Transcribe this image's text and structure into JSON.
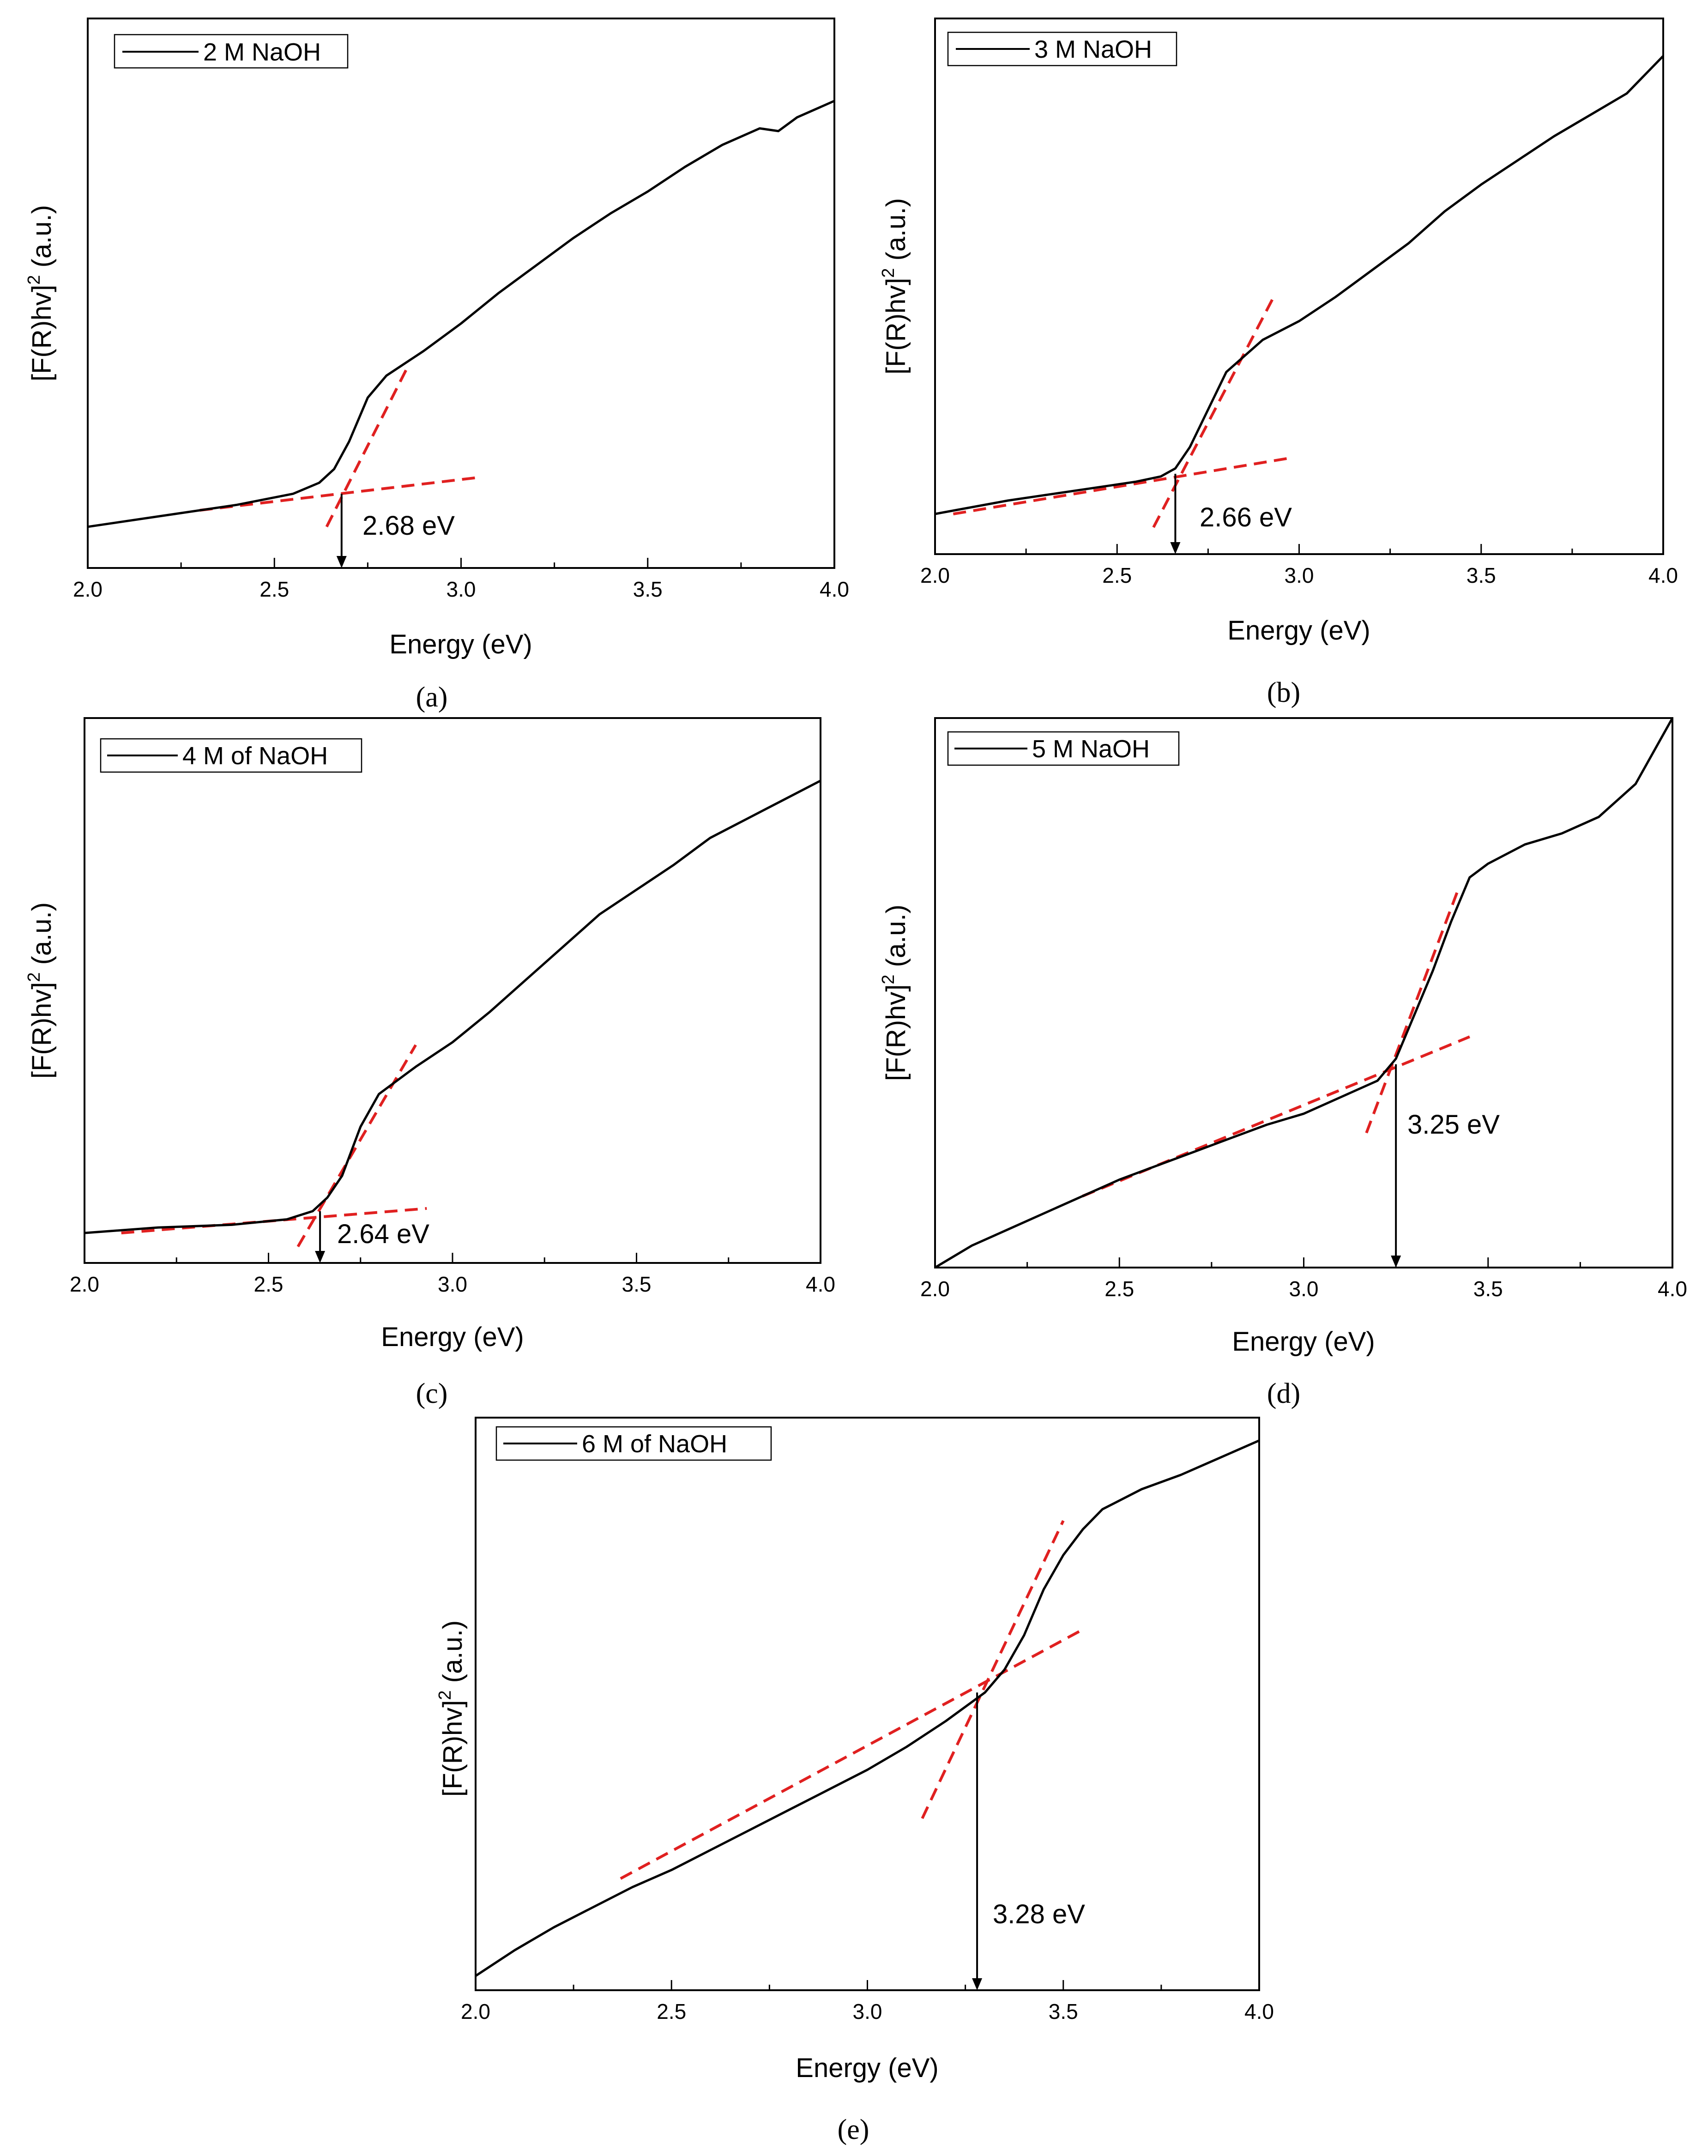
{
  "colors": {
    "curve": "#000000",
    "fit_line": "#e02020",
    "axis": "#000000",
    "background": "#ffffff"
  },
  "chart_data": [
    {
      "type": "line",
      "panel": "(a)",
      "xlabel": "Energy (eV)",
      "ylabel_main": "[F(R)hv]",
      "ylabel_sup": "2",
      "ylabel_tail": " (a.u.)",
      "xlim": [
        2.0,
        4.0
      ],
      "ylim": [
        0,
        100
      ],
      "xticks": [
        "2.0",
        "2.5",
        "3.0",
        "3.5",
        "4.0"
      ],
      "legend": "2 M NaOH",
      "series": [
        {
          "name": "2 M NaOH",
          "x": [
            2.0,
            2.2,
            2.4,
            2.55,
            2.62,
            2.66,
            2.7,
            2.75,
            2.8,
            2.9,
            3.0,
            3.1,
            3.2,
            3.3,
            3.4,
            3.5,
            3.6,
            3.7,
            3.8,
            3.85,
            3.9,
            4.0
          ],
          "y": [
            7.5,
            9.5,
            11.5,
            13.5,
            15.5,
            18,
            23,
            31,
            35,
            39.5,
            44.5,
            50,
            55,
            60,
            64.5,
            68.5,
            73,
            77,
            80,
            79.5,
            82,
            85
          ]
        }
      ],
      "fit_lines": [
        [
          [
            2.3,
            10.5
          ],
          [
            3.05,
            16.5
          ]
        ],
        [
          [
            2.64,
            7.5
          ],
          [
            2.86,
            37
          ]
        ]
      ],
      "band_gap": 2.68,
      "annotation": "2.68 eV",
      "arrow_from_y": 13.5
    },
    {
      "type": "line",
      "panel": "(b)",
      "xlabel": "Energy (eV)",
      "ylabel_main": "[F(R)hv]",
      "ylabel_sup": "2",
      "ylabel_tail": " (a.u.)",
      "xlim": [
        2.0,
        4.0
      ],
      "ylim": [
        0,
        100
      ],
      "xticks": [
        "2.0",
        "2.5",
        "3.0",
        "3.5",
        "4.0"
      ],
      "legend": "3 M NaOH",
      "series": [
        {
          "name": "3 M NaOH",
          "x": [
            2.0,
            2.2,
            2.4,
            2.55,
            2.62,
            2.66,
            2.7,
            2.75,
            2.8,
            2.9,
            3.0,
            3.1,
            3.2,
            3.3,
            3.4,
            3.5,
            3.6,
            3.7,
            3.8,
            3.9,
            4.0
          ],
          "y": [
            7.5,
            10,
            12,
            13.5,
            14.5,
            16,
            20,
            27,
            34,
            40,
            43.5,
            48,
            53,
            58,
            64,
            69,
            73.5,
            78,
            82,
            86,
            93
          ]
        }
      ],
      "fit_lines": [
        [
          [
            2.05,
            7.5
          ],
          [
            2.98,
            18
          ]
        ],
        [
          [
            2.6,
            5
          ],
          [
            2.93,
            48
          ]
        ]
      ],
      "band_gap": 2.66,
      "annotation": "2.66 eV",
      "arrow_from_y": 15
    },
    {
      "type": "line",
      "panel": "(c)",
      "xlabel": "Energy (eV)",
      "ylabel_main": "[F(R)hv]",
      "ylabel_sup": "2",
      "ylabel_tail": " (a.u.)",
      "xlim": [
        2.0,
        4.0
      ],
      "ylim": [
        0,
        100
      ],
      "xticks": [
        "2.0",
        "2.5",
        "3.0",
        "3.5",
        "4.0"
      ],
      "legend": "4 M of NaOH",
      "series": [
        {
          "name": "4 M of NaOH",
          "x": [
            2.0,
            2.2,
            2.4,
            2.55,
            2.62,
            2.66,
            2.7,
            2.75,
            2.8,
            2.9,
            3.0,
            3.1,
            3.2,
            3.3,
            3.4,
            3.5,
            3.6,
            3.7,
            3.8,
            3.9,
            4.0
          ],
          "y": [
            5.5,
            6.5,
            7,
            8,
            9.5,
            12,
            16,
            25,
            31,
            36,
            40.5,
            46,
            52,
            58,
            64,
            68.5,
            73,
            78,
            81.5,
            85,
            88.5
          ]
        }
      ],
      "fit_lines": [
        [
          [
            2.1,
            5.5
          ],
          [
            2.93,
            10
          ]
        ],
        [
          [
            2.58,
            3
          ],
          [
            2.9,
            40
          ]
        ]
      ],
      "band_gap": 2.64,
      "annotation": "2.64 eV",
      "arrow_from_y": 9.5
    },
    {
      "type": "line",
      "panel": "(d)",
      "xlabel": "Energy (eV)",
      "ylabel_main": "[F(R)hv]",
      "ylabel_sup": "2",
      "ylabel_tail": " (a.u.)",
      "xlim": [
        2.0,
        4.0
      ],
      "ylim": [
        0,
        100
      ],
      "xticks": [
        "2.0",
        "2.5",
        "3.0",
        "3.5",
        "4.0"
      ],
      "legend": "5 M NaOH",
      "series": [
        {
          "name": "5 M NaOH",
          "x": [
            2.0,
            2.05,
            2.1,
            2.2,
            2.3,
            2.4,
            2.5,
            2.6,
            2.7,
            2.8,
            2.9,
            3.0,
            3.1,
            3.2,
            3.25,
            3.3,
            3.35,
            3.4,
            3.45,
            3.5,
            3.6,
            3.7,
            3.8,
            3.9,
            4.0
          ],
          "y": [
            0,
            2,
            4,
            7,
            10,
            13,
            16,
            18.5,
            21,
            23.5,
            26,
            28,
            31,
            34,
            38,
            46,
            54,
            63,
            71,
            73.5,
            77,
            79,
            82,
            88,
            100
          ]
        }
      ],
      "fit_lines": [
        [
          [
            2.4,
            13
          ],
          [
            3.45,
            42
          ]
        ],
        [
          [
            3.17,
            24.5
          ],
          [
            3.42,
            69
          ]
        ]
      ],
      "band_gap": 3.25,
      "annotation": "3.25 eV",
      "arrow_from_y": 37
    },
    {
      "type": "line",
      "panel": "(e)",
      "xlabel": "Energy (eV)",
      "ylabel_main": "[F(R)hv]",
      "ylabel_sup": "2",
      "ylabel_tail": " (a.u.)",
      "xlim": [
        2.0,
        4.0
      ],
      "ylim": [
        0,
        100
      ],
      "xticks": [
        "2.0",
        "2.5",
        "3.0",
        "3.5",
        "4.0"
      ],
      "legend": "6 M of NaOH",
      "series": [
        {
          "name": "6 M of NaOH",
          "x": [
            2.0,
            2.1,
            2.2,
            2.3,
            2.4,
            2.5,
            2.6,
            2.7,
            2.8,
            2.9,
            3.0,
            3.1,
            3.2,
            3.3,
            3.35,
            3.4,
            3.45,
            3.5,
            3.55,
            3.6,
            3.7,
            3.8,
            3.9,
            4.0
          ],
          "y": [
            2.5,
            7,
            11,
            14.5,
            18,
            21,
            24.5,
            28,
            31.5,
            35,
            38.5,
            42.5,
            47,
            52,
            56,
            62,
            70,
            76,
            80.5,
            84,
            87.5,
            90,
            93,
            96
          ]
        }
      ],
      "fit_lines": [
        [
          [
            2.37,
            19.5
          ],
          [
            3.55,
            63
          ]
        ],
        [
          [
            3.14,
            30
          ],
          [
            3.5,
            82
          ]
        ]
      ],
      "band_gap": 3.28,
      "annotation": "3.28 eV",
      "arrow_from_y": 52
    }
  ]
}
